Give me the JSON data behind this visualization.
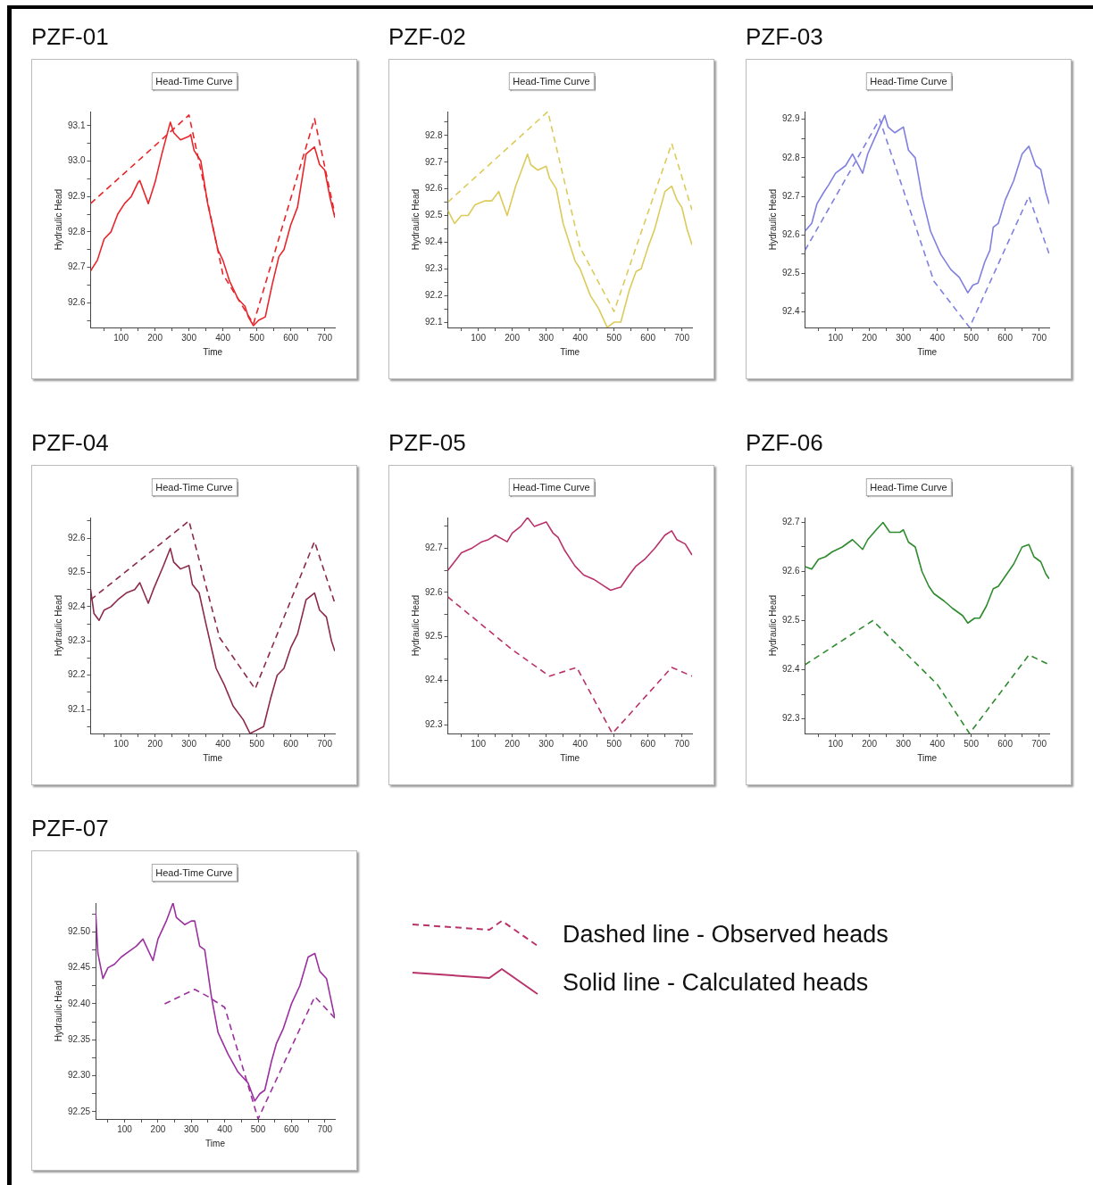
{
  "chart_data": [
    {
      "type": "line",
      "title": "PZF-01",
      "subtitle": "Head-Time Curve",
      "xlabel": "Time",
      "ylabel": "Hydraulic Head",
      "xlim": [
        10,
        730
      ],
      "ylim": [
        92.53,
        93.14
      ],
      "xticks": [
        {
          "value": 50,
          "label": null
        },
        100,
        {
          "value": 150,
          "label": null
        },
        200,
        {
          "value": 250,
          "label": null
        },
        300,
        {
          "value": 350,
          "label": null
        },
        400,
        {
          "value": 450,
          "label": null
        },
        500,
        {
          "value": 550,
          "label": null
        },
        600,
        {
          "value": 650,
          "label": null
        },
        700
      ],
      "yticks": [
        {
          "value": 92.55,
          "label": null
        },
        92.6,
        {
          "value": 92.65,
          "label": null
        },
        92.7,
        {
          "value": 92.75,
          "label": null
        },
        92.8,
        {
          "value": 92.85,
          "label": null
        },
        92.9,
        {
          "value": 92.95,
          "label": null
        },
        {
          "value": 93,
          "label": "93.0"
        },
        {
          "value": 93.05,
          "label": null
        },
        93.1
      ],
      "series": [
        {
          "color": "#e8262b",
          "line_style": "dashed",
          "x": [
            10,
            300,
            345,
            400,
            490,
            670,
            730
          ],
          "values": [
            92.88,
            93.13,
            92.93,
            92.68,
            92.54,
            93.12,
            92.85
          ]
        },
        {
          "color": "#e8262b",
          "line_style": "solid",
          "x": [
            10,
            30,
            50,
            70,
            90,
            110,
            130,
            150,
            155,
            180,
            200,
            220,
            245,
            255,
            275,
            300,
            305,
            315,
            335,
            355,
            385,
            400,
            420,
            445,
            465,
            475,
            490,
            505,
            525,
            545,
            565,
            580,
            600,
            620,
            645,
            670,
            685,
            700,
            715,
            730
          ],
          "values": [
            92.69,
            92.72,
            92.78,
            92.8,
            92.85,
            92.88,
            92.9,
            92.94,
            92.945,
            92.88,
            92.94,
            93.02,
            93.11,
            93.08,
            93.06,
            93.07,
            93.075,
            93.03,
            93.0,
            92.88,
            92.75,
            92.72,
            92.66,
            92.61,
            92.59,
            92.56,
            92.535,
            92.55,
            92.56,
            92.65,
            92.73,
            92.75,
            92.82,
            92.87,
            93.02,
            93.04,
            92.99,
            92.975,
            92.9,
            92.84
          ]
        }
      ]
    },
    {
      "type": "line",
      "title": "PZF-02",
      "subtitle": "Head-Time Curve",
      "xlabel": "Time",
      "ylabel": "Hydraulic Head",
      "xlim": [
        10,
        730
      ],
      "ylim": [
        92.08,
        92.89
      ],
      "xticks": [
        {
          "value": 50,
          "label": null
        },
        100,
        {
          "value": 150,
          "label": null
        },
        200,
        {
          "value": 250,
          "label": null
        },
        300,
        {
          "value": 350,
          "label": null
        },
        400,
        {
          "value": 450,
          "label": null
        },
        500,
        {
          "value": 550,
          "label": null
        },
        600,
        {
          "value": 650,
          "label": null
        },
        700
      ],
      "yticks": [
        92.1,
        {
          "value": 92.15,
          "label": null
        },
        92.2,
        {
          "value": 92.25,
          "label": null
        },
        92.3,
        {
          "value": 92.35,
          "label": null
        },
        92.4,
        {
          "value": 92.45,
          "label": null
        },
        92.5,
        {
          "value": 92.55,
          "label": null
        },
        92.6,
        {
          "value": 92.65,
          "label": null
        },
        92.7,
        {
          "value": 92.75,
          "label": null
        },
        92.8,
        {
          "value": 92.85,
          "label": null
        }
      ],
      "series": [
        {
          "color": "#dccb5a",
          "line_style": "dashed",
          "x": [
            10,
            305,
            400,
            500,
            670,
            730
          ],
          "values": [
            92.55,
            92.89,
            92.38,
            92.14,
            92.77,
            92.52
          ]
        },
        {
          "color": "#dccb5a",
          "line_style": "solid",
          "x": [
            10,
            30,
            50,
            70,
            90,
            120,
            140,
            160,
            185,
            210,
            245,
            255,
            275,
            300,
            310,
            330,
            350,
            385,
            400,
            430,
            455,
            480,
            500,
            520,
            545,
            565,
            580,
            600,
            620,
            650,
            670,
            685,
            700,
            715,
            730
          ],
          "values": [
            92.52,
            92.47,
            92.5,
            92.5,
            92.54,
            92.555,
            92.555,
            92.59,
            92.5,
            92.61,
            92.73,
            92.69,
            92.67,
            92.685,
            92.64,
            92.6,
            92.47,
            92.33,
            92.3,
            92.2,
            92.15,
            92.08,
            92.1,
            92.1,
            92.22,
            92.29,
            92.3,
            92.38,
            92.45,
            92.59,
            92.61,
            92.56,
            92.53,
            92.45,
            92.39
          ]
        }
      ]
    },
    {
      "type": "line",
      "title": "PZF-03",
      "subtitle": "Head-Time Curve",
      "xlabel": "Time",
      "ylabel": "Hydraulic Head",
      "xlim": [
        10,
        730
      ],
      "ylim": [
        92.36,
        92.92
      ],
      "xticks": [
        {
          "value": 50,
          "label": null
        },
        100,
        {
          "value": 150,
          "label": null
        },
        200,
        {
          "value": 250,
          "label": null
        },
        300,
        {
          "value": 350,
          "label": null
        },
        400,
        {
          "value": 450,
          "label": null
        },
        500,
        {
          "value": 550,
          "label": null
        },
        600,
        {
          "value": 650,
          "label": null
        },
        700
      ],
      "yticks": [
        92.4,
        {
          "value": 92.45,
          "label": null
        },
        92.5,
        {
          "value": 92.55,
          "label": null
        },
        92.6,
        {
          "value": 92.65,
          "label": null
        },
        92.7,
        {
          "value": 92.75,
          "label": null
        },
        92.8,
        {
          "value": 92.85,
          "label": null
        },
        92.9
      ],
      "series": [
        {
          "color": "#8080e0",
          "line_style": "dashed",
          "x": [
            10,
            230,
            390,
            495,
            670,
            730
          ],
          "values": [
            92.56,
            92.9,
            92.48,
            92.36,
            92.7,
            92.55
          ]
        },
        {
          "color": "#8080e0",
          "line_style": "solid",
          "x": [
            10,
            30,
            45,
            65,
            80,
            100,
            130,
            150,
            180,
            195,
            220,
            245,
            255,
            275,
            300,
            315,
            335,
            355,
            380,
            410,
            440,
            465,
            490,
            505,
            520,
            540,
            555,
            565,
            580,
            600,
            625,
            650,
            670,
            690,
            705,
            720,
            730
          ],
          "values": [
            92.61,
            92.63,
            92.68,
            92.71,
            92.73,
            92.76,
            92.78,
            92.81,
            92.76,
            92.81,
            92.86,
            92.91,
            92.88,
            92.865,
            92.88,
            92.82,
            92.8,
            92.7,
            92.61,
            92.55,
            92.51,
            92.49,
            92.45,
            92.47,
            92.475,
            92.53,
            92.56,
            92.62,
            92.63,
            92.69,
            92.74,
            92.81,
            92.83,
            92.78,
            92.77,
            92.71,
            92.68
          ]
        }
      ]
    },
    {
      "type": "line",
      "title": "PZF-04",
      "subtitle": "Head-Time Curve",
      "xlabel": "Time",
      "ylabel": "Hydraulic Head",
      "xlim": [
        10,
        730
      ],
      "ylim": [
        92.03,
        92.66
      ],
      "xticks": [
        {
          "value": 50,
          "label": null
        },
        100,
        {
          "value": 150,
          "label": null
        },
        200,
        {
          "value": 250,
          "label": null
        },
        300,
        {
          "value": 350,
          "label": null
        },
        400,
        {
          "value": 450,
          "label": null
        },
        500,
        {
          "value": 550,
          "label": null
        },
        600,
        {
          "value": 650,
          "label": null
        },
        700
      ],
      "yticks": [
        {
          "value": 92.05,
          "label": null
        },
        92.1,
        {
          "value": 92.15,
          "label": null
        },
        92.2,
        {
          "value": 92.25,
          "label": null
        },
        92.3,
        {
          "value": 92.35,
          "label": null
        },
        92.4,
        {
          "value": 92.45,
          "label": null
        },
        92.5,
        {
          "value": 92.55,
          "label": null
        },
        92.6,
        {
          "value": 92.65,
          "label": null
        }
      ],
      "series": [
        {
          "color": "#8b2a4a",
          "line_style": "dashed",
          "x": [
            10,
            300,
            390,
            495,
            670,
            730
          ],
          "values": [
            92.42,
            92.65,
            92.31,
            92.16,
            92.59,
            92.41
          ]
        },
        {
          "color": "#8b2a4a",
          "line_style": "solid",
          "x": [
            10,
            20,
            35,
            50,
            70,
            90,
            115,
            140,
            155,
            180,
            195,
            225,
            245,
            255,
            275,
            300,
            310,
            330,
            350,
            380,
            405,
            430,
            460,
            480,
            500,
            520,
            540,
            560,
            580,
            600,
            620,
            645,
            670,
            685,
            705,
            720,
            730
          ],
          "values": [
            92.45,
            92.38,
            92.36,
            92.39,
            92.4,
            92.42,
            92.44,
            92.45,
            92.47,
            92.41,
            92.45,
            92.52,
            92.57,
            92.53,
            92.51,
            92.52,
            92.465,
            92.44,
            92.35,
            92.22,
            92.17,
            92.11,
            92.07,
            92.03,
            92.04,
            92.05,
            92.13,
            92.2,
            92.22,
            92.28,
            92.32,
            92.42,
            92.44,
            92.39,
            92.37,
            92.3,
            92.27
          ]
        }
      ]
    },
    {
      "type": "line",
      "title": "PZF-05",
      "subtitle": "Head-Time Curve",
      "xlabel": "Time",
      "ylabel": "Hydraulic Head",
      "xlim": [
        10,
        730
      ],
      "ylim": [
        92.28,
        92.77
      ],
      "xticks": [
        {
          "value": 50,
          "label": null
        },
        100,
        {
          "value": 150,
          "label": null
        },
        200,
        {
          "value": 250,
          "label": null
        },
        300,
        {
          "value": 350,
          "label": null
        },
        400,
        {
          "value": 450,
          "label": null
        },
        500,
        {
          "value": 550,
          "label": null
        },
        600,
        {
          "value": 650,
          "label": null
        },
        700
      ],
      "yticks": [
        92.3,
        {
          "value": 92.35,
          "label": null
        },
        92.4,
        {
          "value": 92.45,
          "label": null
        },
        92.5,
        {
          "value": 92.55,
          "label": null
        },
        92.6,
        {
          "value": 92.65,
          "label": null
        },
        92.7,
        {
          "value": 92.75,
          "label": null
        }
      ],
      "series": [
        {
          "color": "#b8336a",
          "line_style": "dashed",
          "x": [
            10,
            200,
            310,
            390,
            495,
            670,
            730
          ],
          "values": [
            92.59,
            92.47,
            92.41,
            92.43,
            92.28,
            92.43,
            92.41
          ]
        },
        {
          "color": "#b8336a",
          "line_style": "solid",
          "x": [
            10,
            30,
            50,
            80,
            110,
            130,
            150,
            185,
            200,
            225,
            245,
            265,
            300,
            320,
            335,
            355,
            385,
            410,
            440,
            470,
            490,
            510,
            520,
            545,
            565,
            590,
            620,
            650,
            670,
            685,
            710,
            730
          ],
          "values": [
            92.65,
            92.67,
            92.69,
            92.7,
            92.715,
            92.72,
            92.73,
            92.715,
            92.735,
            92.75,
            92.77,
            92.75,
            92.76,
            92.735,
            92.725,
            92.695,
            92.66,
            92.64,
            92.63,
            92.615,
            92.605,
            92.61,
            92.612,
            92.64,
            92.66,
            92.675,
            92.7,
            92.73,
            92.74,
            92.72,
            92.71,
            92.685
          ]
        }
      ]
    },
    {
      "type": "line",
      "title": "PZF-06",
      "subtitle": "Head-Time Curve",
      "xlabel": "Time",
      "ylabel": "Hydraulic Head",
      "xlim": [
        10,
        730
      ],
      "ylim": [
        92.27,
        92.71
      ],
      "xticks": [
        {
          "value": 50,
          "label": null
        },
        100,
        {
          "value": 150,
          "label": null
        },
        200,
        {
          "value": 250,
          "label": null
        },
        300,
        {
          "value": 350,
          "label": null
        },
        400,
        {
          "value": 450,
          "label": null
        },
        500,
        {
          "value": 550,
          "label": null
        },
        600,
        {
          "value": 650,
          "label": null
        },
        700
      ],
      "yticks": [
        92.3,
        {
          "value": 92.35,
          "label": null
        },
        92.4,
        {
          "value": 92.45,
          "label": null
        },
        92.5,
        {
          "value": 92.55,
          "label": null
        },
        92.6,
        {
          "value": 92.65,
          "label": null
        },
        92.7
      ],
      "series": [
        {
          "color": "#2e8b2e",
          "line_style": "dashed",
          "x": [
            10,
            210,
            400,
            495,
            670,
            730
          ],
          "values": [
            92.41,
            92.5,
            92.37,
            92.27,
            92.43,
            92.41
          ]
        },
        {
          "color": "#2e8b2e",
          "line_style": "solid",
          "x": [
            10,
            30,
            50,
            70,
            90,
            120,
            150,
            180,
            195,
            220,
            240,
            260,
            290,
            300,
            315,
            335,
            355,
            375,
            390,
            420,
            445,
            475,
            490,
            510,
            525,
            545,
            565,
            580,
            600,
            625,
            650,
            670,
            685,
            705,
            720,
            730
          ],
          "values": [
            92.61,
            92.605,
            92.625,
            92.63,
            92.64,
            92.65,
            92.665,
            92.645,
            92.665,
            92.685,
            92.7,
            92.68,
            92.68,
            92.685,
            92.66,
            92.65,
            92.6,
            92.57,
            92.555,
            92.54,
            92.525,
            92.51,
            92.495,
            92.505,
            92.505,
            92.53,
            92.565,
            92.57,
            92.59,
            92.615,
            92.65,
            92.655,
            92.63,
            92.62,
            92.595,
            92.585
          ]
        }
      ]
    },
    {
      "type": "line",
      "title": "PZF-07",
      "subtitle": "Head-Time Curve",
      "xlabel": "Time",
      "ylabel": "Hydraulic Head",
      "xlim": [
        13,
        730
      ],
      "ylim": [
        92.24,
        92.54
      ],
      "xticks": [
        {
          "value": 50,
          "label": null
        },
        100,
        {
          "value": 150,
          "label": null
        },
        200,
        {
          "value": 250,
          "label": null
        },
        300,
        {
          "value": 350,
          "label": null
        },
        400,
        {
          "value": 450,
          "label": null
        },
        500,
        {
          "value": 550,
          "label": null
        },
        600,
        {
          "value": 650,
          "label": null
        },
        700
      ],
      "yticks": [
        {
          "value": 92.25,
          "label": "92.25"
        },
        {
          "value": 92.275,
          "label": null
        },
        {
          "value": 92.3,
          "label": "92.30"
        },
        {
          "value": 92.325,
          "label": null
        },
        {
          "value": 92.35,
          "label": "92.35"
        },
        {
          "value": 92.375,
          "label": null
        },
        {
          "value": 92.4,
          "label": "92.40"
        },
        {
          "value": 92.425,
          "label": null
        },
        {
          "value": 92.45,
          "label": "92.45"
        },
        {
          "value": 92.475,
          "label": null
        },
        {
          "value": 92.5,
          "label": "92.50"
        },
        {
          "value": 92.525,
          "label": null
        }
      ],
      "series": [
        {
          "color": "#9b30a0",
          "line_style": "dashed",
          "x": [
            220,
            310,
            350,
            400,
            500,
            670,
            730
          ],
          "values": [
            92.4,
            92.42,
            92.41,
            92.395,
            92.24,
            92.41,
            92.38
          ]
        },
        {
          "color": "#9b30a0",
          "line_style": "solid",
          "x": [
            13,
            20,
            35,
            50,
            70,
            90,
            120,
            135,
            155,
            185,
            200,
            225,
            245,
            255,
            280,
            300,
            310,
            325,
            340,
            360,
            380,
            410,
            440,
            470,
            490,
            505,
            520,
            540,
            555,
            575,
            600,
            625,
            650,
            670,
            685,
            705,
            730
          ],
          "values": [
            92.53,
            92.47,
            92.435,
            92.45,
            92.455,
            92.465,
            92.475,
            92.48,
            92.49,
            92.46,
            92.49,
            92.515,
            92.54,
            92.52,
            92.51,
            92.515,
            92.515,
            92.48,
            92.475,
            92.41,
            92.36,
            92.33,
            92.305,
            92.29,
            92.265,
            92.275,
            92.28,
            92.32,
            92.345,
            92.365,
            92.4,
            92.425,
            92.465,
            92.47,
            92.445,
            92.435,
            92.38
          ]
        }
      ]
    },
    {
      "type": "other",
      "annotations": [
        "Dashed line - Observed heads",
        "Solid line - Calculated heads"
      ]
    }
  ]
}
